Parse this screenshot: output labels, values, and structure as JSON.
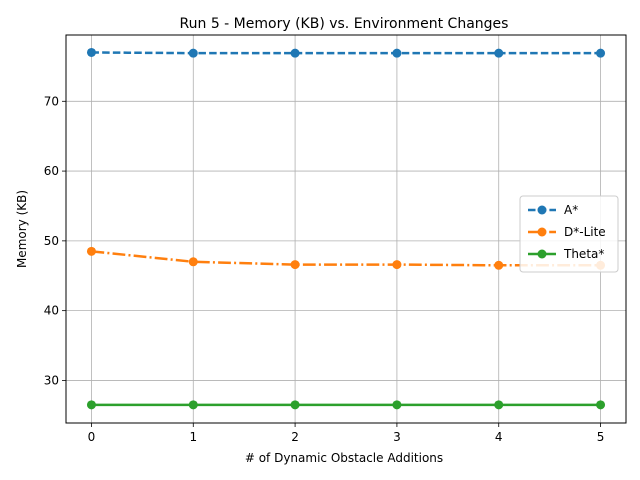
{
  "chart_data": {
    "type": "line",
    "title": "Run 5 - Memory (KB) vs. Environment Changes",
    "xlabel": "# of Dynamic Obstacle Additions",
    "ylabel": "Memory (KB)",
    "x": [
      0,
      1,
      2,
      3,
      4,
      5
    ],
    "xticks": [
      "0",
      "1",
      "2",
      "3",
      "4",
      "5"
    ],
    "xlim": [
      -0.25,
      5.25
    ],
    "yticks": [
      "30",
      "40",
      "50",
      "60",
      "70"
    ],
    "ytick_values": [
      30,
      40,
      50,
      60,
      70
    ],
    "ylim": [
      23.9,
      79.5
    ],
    "grid": true,
    "legend_position": "center right",
    "series": [
      {
        "name": "A*",
        "values": [
          77.0,
          76.9,
          76.9,
          76.9,
          76.9,
          76.9
        ],
        "color": "#1f77b4",
        "linestyle": "dashed",
        "marker": "circle"
      },
      {
        "name": "D*-Lite",
        "values": [
          48.5,
          47.0,
          46.6,
          46.6,
          46.5,
          46.5
        ],
        "color": "#ff7f0e",
        "linestyle": "dashdot",
        "marker": "circle"
      },
      {
        "name": "Theta*",
        "values": [
          26.5,
          26.5,
          26.5,
          26.5,
          26.5,
          26.5
        ],
        "color": "#2ca02c",
        "linestyle": "solid",
        "marker": "circle"
      }
    ]
  }
}
